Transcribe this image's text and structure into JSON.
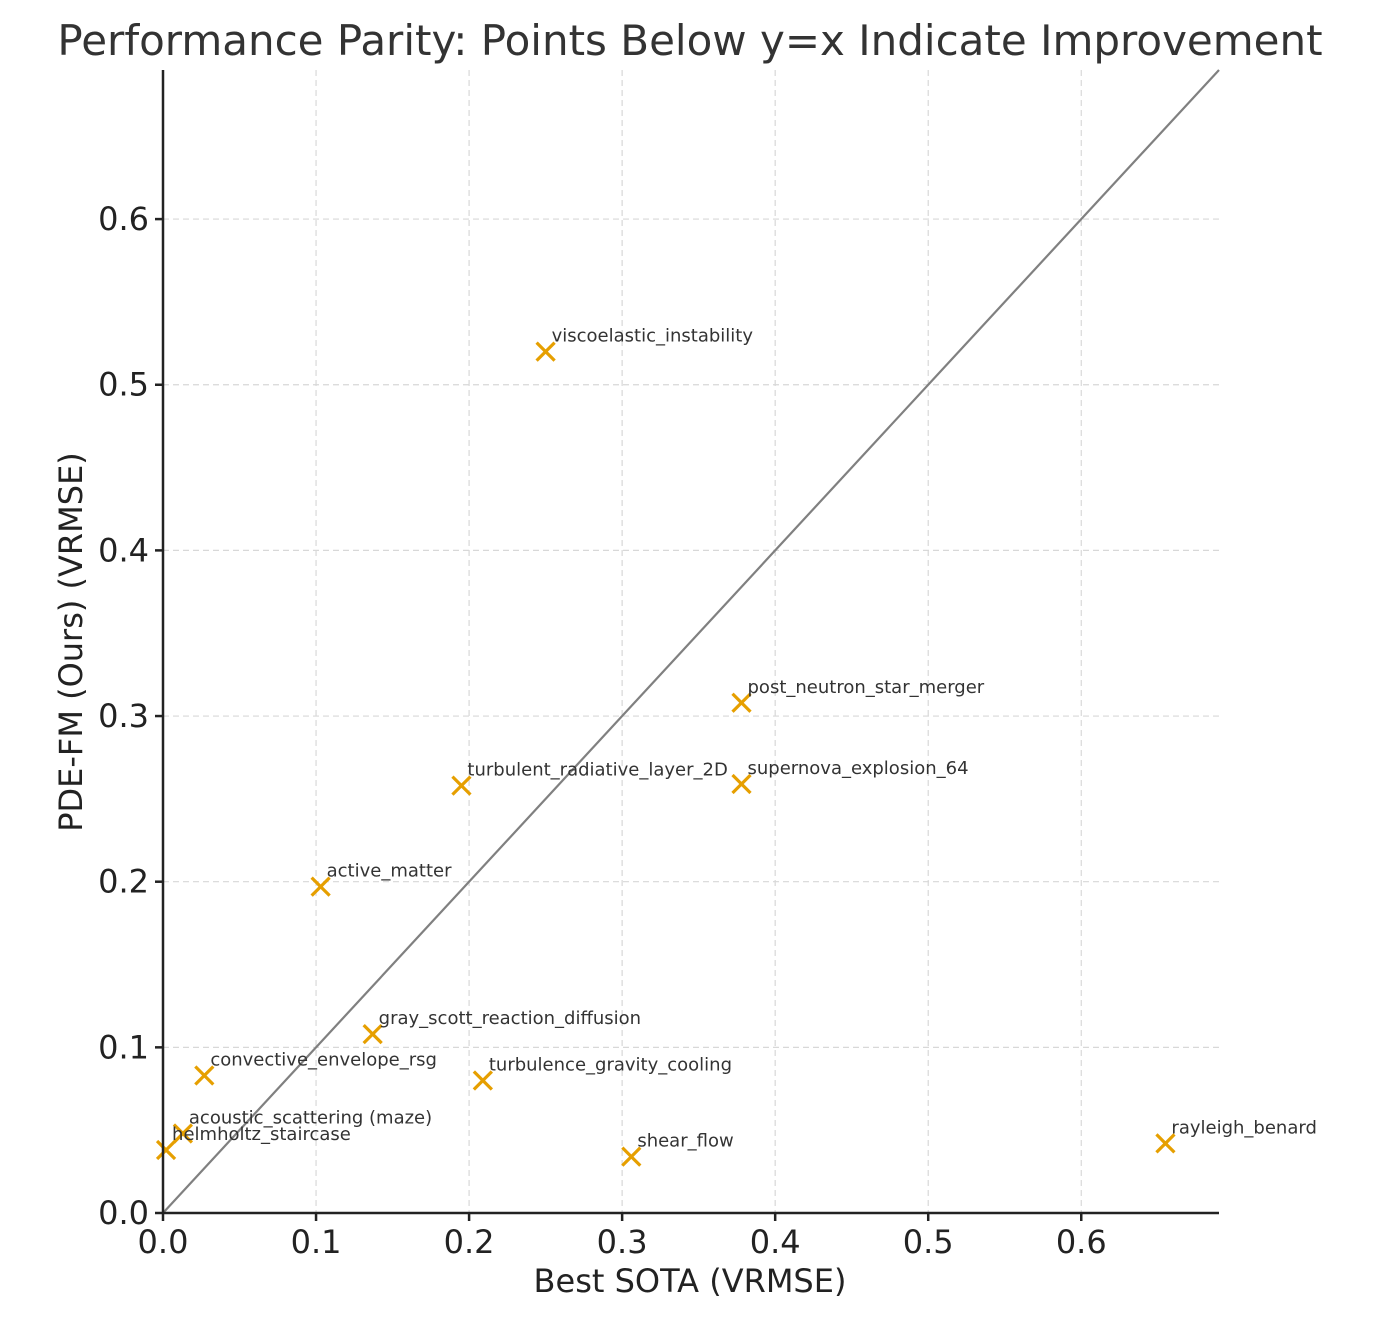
{
  "chart_data": {
    "type": "scatter",
    "title": "Performance Parity: Points Below y=x Indicate Improvement",
    "xlabel": "Best SOTA (VRMSE)",
    "ylabel": "PDE-FM (Ours) (VRMSE)",
    "xlim": [
      0,
      0.69
    ],
    "ylim": [
      0,
      0.69
    ],
    "xticks": [
      0.0,
      0.1,
      0.2,
      0.3,
      0.4,
      0.5,
      0.6
    ],
    "yticks": [
      0.0,
      0.1,
      0.2,
      0.3,
      0.4,
      0.5,
      0.6
    ],
    "xtick_labels": [
      "0.0",
      "0.1",
      "0.2",
      "0.3",
      "0.4",
      "0.5",
      "0.6"
    ],
    "ytick_labels": [
      "0.0",
      "0.1",
      "0.2",
      "0.3",
      "0.4",
      "0.5",
      "0.6"
    ],
    "grid": true,
    "reference_line": "y=x",
    "marker": "x",
    "marker_color": "#E69F00",
    "points": [
      {
        "label": "viscoelastic_instability",
        "x": 0.25,
        "y": 0.52
      },
      {
        "label": "post_neutron_star_merger",
        "x": 0.378,
        "y": 0.308
      },
      {
        "label": "turbulent_radiative_layer_2D",
        "x": 0.195,
        "y": 0.258
      },
      {
        "label": "supernova_explosion_64",
        "x": 0.378,
        "y": 0.259
      },
      {
        "label": "active_matter",
        "x": 0.103,
        "y": 0.197
      },
      {
        "label": "gray_scott_reaction_diffusion",
        "x": 0.137,
        "y": 0.108
      },
      {
        "label": "convective_envelope_rsg",
        "x": 0.027,
        "y": 0.083
      },
      {
        "label": "turbulence_gravity_cooling",
        "x": 0.209,
        "y": 0.08
      },
      {
        "label": "acoustic_scattering (maze)",
        "x": 0.013,
        "y": 0.048
      },
      {
        "label": "helmholtz_staircase",
        "x": 0.002,
        "y": 0.038
      },
      {
        "label": "shear_flow",
        "x": 0.306,
        "y": 0.034
      },
      {
        "label": "rayleigh_benard",
        "x": 0.655,
        "y": 0.042
      }
    ]
  }
}
